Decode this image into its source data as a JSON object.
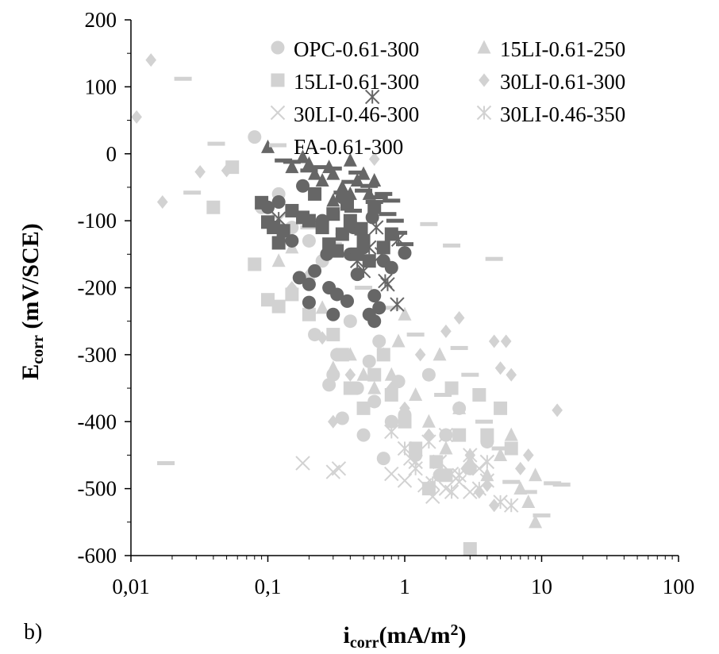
{
  "panel_label": "b)",
  "axis_titles": {
    "x": {
      "main": "i",
      "sub": "corr",
      "rest": "(mA/m",
      "sup": "2",
      "close": ")"
    },
    "y": {
      "main": "E",
      "sub": "corr",
      "rest": " (mV/SCE)"
    }
  },
  "colors": {
    "light": "#d2d2d2",
    "dark": "#666666",
    "axis": "#000000"
  },
  "chart_data": {
    "type": "scatter",
    "xlabel": "icorr(mA/m2)",
    "ylabel": "Ecorr (mV/SCE)",
    "x_scale": "log",
    "xlim": [
      0.01,
      100
    ],
    "ylim": [
      -600,
      200
    ],
    "x_ticks": [
      0.01,
      0.1,
      1,
      10,
      100
    ],
    "x_tick_labels": [
      "0,01",
      "0,1",
      "1",
      "10",
      "100"
    ],
    "y_ticks": [
      200,
      100,
      0,
      -100,
      -200,
      -300,
      -400,
      -500,
      -600
    ],
    "y_tick_labels": [
      "200",
      "100",
      "0",
      "-100",
      "-200",
      "-300",
      "-400",
      "-500",
      "-600"
    ],
    "grid": false,
    "legend_position": "top-right",
    "series": [
      {
        "name": "OPC-0.61-300",
        "marker": "circle",
        "color": "#d2d2d2",
        "points": [
          [
            0.08,
            25
          ],
          [
            0.09,
            -80
          ],
          [
            0.12,
            -60
          ],
          [
            0.15,
            -110
          ],
          [
            0.2,
            -130
          ],
          [
            0.22,
            -270
          ],
          [
            0.25,
            -160
          ],
          [
            0.3,
            -330
          ],
          [
            0.32,
            -300
          ],
          [
            0.35,
            -395
          ],
          [
            0.4,
            -250
          ],
          [
            0.45,
            -350
          ],
          [
            0.5,
            -420
          ],
          [
            0.6,
            -370
          ],
          [
            0.7,
            -455
          ],
          [
            0.8,
            -400
          ],
          [
            1.0,
            -390
          ],
          [
            1.2,
            -450
          ],
          [
            1.5,
            -330
          ],
          [
            2.0,
            -420
          ],
          [
            2.5,
            -380
          ],
          [
            3.0,
            -470
          ],
          [
            4.0,
            -430
          ],
          [
            0.28,
            -345
          ],
          [
            0.55,
            -310
          ],
          [
            0.9,
            -340
          ],
          [
            1.8,
            -480
          ],
          [
            0.38,
            -220
          ],
          [
            0.65,
            -280
          ]
        ]
      },
      {
        "name": "OPC-0.61-300 (dark)",
        "marker": "circle",
        "color": "#666666",
        "points": [
          [
            0.1,
            -80
          ],
          [
            0.12,
            -72
          ],
          [
            0.15,
            -130
          ],
          [
            0.17,
            -185
          ],
          [
            0.18,
            -48
          ],
          [
            0.2,
            -195
          ],
          [
            0.22,
            -175
          ],
          [
            0.2,
            -222
          ],
          [
            0.25,
            -100
          ],
          [
            0.28,
            -200
          ],
          [
            0.3,
            -240
          ],
          [
            0.32,
            -210
          ],
          [
            0.35,
            -120
          ],
          [
            0.38,
            -220
          ],
          [
            0.4,
            -150
          ],
          [
            0.45,
            -180
          ],
          [
            0.5,
            -140
          ],
          [
            0.55,
            -240
          ],
          [
            0.6,
            -250
          ],
          [
            0.6,
            -212
          ],
          [
            0.65,
            -230
          ],
          [
            0.7,
            -160
          ],
          [
            0.8,
            -170
          ],
          [
            1.0,
            -148
          ],
          [
            0.27,
            -150
          ],
          [
            0.42,
            -110
          ],
          [
            0.58,
            -95
          ],
          [
            0.35,
            -65
          ]
        ]
      },
      {
        "name": "15LI-0.61-250",
        "marker": "triangle",
        "color": "#d2d2d2",
        "points": [
          [
            0.12,
            -160
          ],
          [
            0.15,
            -140
          ],
          [
            0.2,
            -180
          ],
          [
            0.25,
            -230
          ],
          [
            0.3,
            -320
          ],
          [
            0.4,
            -300
          ],
          [
            0.5,
            -330
          ],
          [
            0.6,
            -350
          ],
          [
            0.7,
            -300
          ],
          [
            0.8,
            -330
          ],
          [
            1.0,
            -240
          ],
          [
            1.2,
            -360
          ],
          [
            1.5,
            -400
          ],
          [
            2.0,
            -440
          ],
          [
            2.5,
            -380
          ],
          [
            3.0,
            -460
          ],
          [
            4.0,
            -480
          ],
          [
            5.0,
            -450
          ],
          [
            6.0,
            -420
          ],
          [
            7.0,
            -500
          ],
          [
            8.0,
            -520
          ],
          [
            9.0,
            -550
          ],
          [
            9.0,
            -480
          ],
          [
            1.8,
            -300
          ],
          [
            0.9,
            -280
          ]
        ]
      },
      {
        "name": "15LI-0.61-250 (dark)",
        "marker": "triangle",
        "color": "#666666",
        "points": [
          [
            0.1,
            10
          ],
          [
            0.15,
            -20
          ],
          [
            0.18,
            -5
          ],
          [
            0.2,
            -15
          ],
          [
            0.22,
            -30
          ],
          [
            0.25,
            -40
          ],
          [
            0.28,
            -20
          ],
          [
            0.3,
            -30
          ],
          [
            0.35,
            -50
          ],
          [
            0.4,
            -10
          ],
          [
            0.45,
            -40
          ],
          [
            0.5,
            -30
          ],
          [
            0.55,
            -60
          ],
          [
            0.6,
            -40
          ],
          [
            0.3,
            -70
          ],
          [
            0.4,
            -60
          ]
        ]
      },
      {
        "name": "15LI-0.61-300",
        "marker": "square",
        "color": "#d2d2d2",
        "points": [
          [
            0.04,
            -80
          ],
          [
            0.055,
            -20
          ],
          [
            0.08,
            -165
          ],
          [
            0.1,
            -218
          ],
          [
            0.12,
            -228
          ],
          [
            0.15,
            -210
          ],
          [
            0.2,
            -240
          ],
          [
            0.3,
            -270
          ],
          [
            0.35,
            -300
          ],
          [
            0.4,
            -350
          ],
          [
            0.5,
            -380
          ],
          [
            0.6,
            -330
          ],
          [
            0.8,
            -360
          ],
          [
            1.0,
            -400
          ],
          [
            1.2,
            -440
          ],
          [
            1.5,
            -500
          ],
          [
            2.0,
            -480
          ],
          [
            2.5,
            -420
          ],
          [
            3.0,
            -590
          ],
          [
            3.5,
            -360
          ],
          [
            4.0,
            -420
          ],
          [
            5.0,
            -380
          ],
          [
            6.0,
            -440
          ],
          [
            2.2,
            -350
          ],
          [
            1.7,
            -460
          ],
          [
            0.7,
            -300
          ]
        ]
      },
      {
        "name": "15LI-0.61-300 (dark)",
        "marker": "square",
        "color": "#666666",
        "points": [
          [
            0.09,
            -73
          ],
          [
            0.1,
            -102
          ],
          [
            0.11,
            -110
          ],
          [
            0.12,
            -133
          ],
          [
            0.13,
            -115
          ],
          [
            0.15,
            -85
          ],
          [
            0.18,
            -95
          ],
          [
            0.2,
            -100
          ],
          [
            0.22,
            -60
          ],
          [
            0.25,
            -110
          ],
          [
            0.28,
            -135
          ],
          [
            0.3,
            -90
          ],
          [
            0.32,
            -145
          ],
          [
            0.35,
            -120
          ],
          [
            0.4,
            -100
          ],
          [
            0.45,
            -150
          ],
          [
            0.5,
            -130
          ],
          [
            0.55,
            -160
          ],
          [
            0.6,
            -80
          ],
          [
            0.7,
            -140
          ],
          [
            0.8,
            -120
          ],
          [
            0.38,
            -75
          ],
          [
            0.48,
            -112
          ]
        ]
      },
      {
        "name": "30LI-0.61-300",
        "marker": "diamond",
        "color": "#d2d2d2",
        "points": [
          [
            0.011,
            55
          ],
          [
            0.014,
            140
          ],
          [
            0.017,
            -72
          ],
          [
            0.032,
            -27
          ],
          [
            0.05,
            -25
          ],
          [
            0.15,
            -200
          ],
          [
            0.2,
            -180
          ],
          [
            0.25,
            -275
          ],
          [
            0.3,
            -400
          ],
          [
            0.4,
            -330
          ],
          [
            0.6,
            -8
          ],
          [
            0.8,
            -350
          ],
          [
            1.0,
            -380
          ],
          [
            1.5,
            -420
          ],
          [
            2.0,
            -265
          ],
          [
            2.5,
            -245
          ],
          [
            3.0,
            -450
          ],
          [
            4.0,
            -495
          ],
          [
            4.5,
            -280
          ],
          [
            5.0,
            -320
          ],
          [
            5.5,
            -280
          ],
          [
            6.0,
            -330
          ],
          [
            7.0,
            -470
          ],
          [
            8.0,
            -450
          ],
          [
            13.0,
            -383
          ],
          [
            4.5,
            -525
          ],
          [
            3.5,
            -505
          ],
          [
            2.8,
            -470
          ],
          [
            1.3,
            -300
          ]
        ]
      },
      {
        "name": "30LI-0.46-300",
        "marker": "x",
        "color": "#d2d2d2",
        "points": [
          [
            0.12,
            -100
          ],
          [
            0.18,
            -462
          ],
          [
            0.3,
            -475
          ],
          [
            0.33,
            -470
          ],
          [
            0.8,
            -478
          ],
          [
            1.0,
            -488
          ],
          [
            1.2,
            -460
          ],
          [
            1.4,
            -495
          ],
          [
            1.6,
            -512
          ],
          [
            2.0,
            -500
          ],
          [
            2.5,
            -490
          ],
          [
            3.0,
            -505
          ],
          [
            3.5,
            -470
          ],
          [
            1.1,
            -455
          ],
          [
            2.2,
            -478
          ],
          [
            4.0,
            -488
          ]
        ]
      },
      {
        "name": "30LI-0.46-350",
        "marker": "asterisk",
        "color": "#d2d2d2",
        "points": [
          [
            0.8,
            -415
          ],
          [
            1.0,
            -440
          ],
          [
            1.2,
            -470
          ],
          [
            1.5,
            -430
          ],
          [
            1.8,
            -460
          ],
          [
            2.0,
            -420
          ],
          [
            2.5,
            -480
          ],
          [
            3.0,
            -450
          ],
          [
            3.5,
            -500
          ],
          [
            4.0,
            -460
          ],
          [
            5.0,
            -520
          ],
          [
            6.0,
            -525
          ],
          [
            2.2,
            -505
          ],
          [
            1.6,
            -492
          ]
        ]
      },
      {
        "name": "30LI-0.46-350 (dark)",
        "marker": "asterisk",
        "color": "#666666",
        "points": [
          [
            0.12,
            -97
          ],
          [
            0.58,
            85
          ],
          [
            0.72,
            -190
          ],
          [
            0.75,
            -195
          ],
          [
            0.88,
            -225
          ],
          [
            0.9,
            -128
          ],
          [
            0.45,
            -160
          ],
          [
            0.5,
            -175
          ],
          [
            0.55,
            -140
          ],
          [
            0.62,
            -110
          ],
          [
            0.68,
            -150
          ]
        ]
      },
      {
        "name": "FA-0.61-300",
        "marker": "dash",
        "color": "#d2d2d2",
        "points": [
          [
            0.018,
            -462
          ],
          [
            0.024,
            112
          ],
          [
            0.028,
            -58
          ],
          [
            0.042,
            15
          ],
          [
            0.2,
            -110
          ],
          [
            0.3,
            -135
          ],
          [
            0.5,
            -200
          ],
          [
            0.8,
            -230
          ],
          [
            1.2,
            -270
          ],
          [
            1.5,
            -105
          ],
          [
            2.2,
            -137
          ],
          [
            2.5,
            -290
          ],
          [
            3.0,
            -330
          ],
          [
            4.5,
            -157
          ],
          [
            6.0,
            -490
          ],
          [
            7.0,
            -610
          ],
          [
            8.0,
            -505
          ],
          [
            10.0,
            -540
          ],
          [
            12.0,
            -492
          ],
          [
            14.0,
            -494
          ],
          [
            5.0,
            -440
          ],
          [
            3.8,
            -400
          ],
          [
            1.9,
            -360
          ]
        ]
      },
      {
        "name": "FA-0.61-300 (dark)",
        "marker": "dash",
        "color": "#666666",
        "points": [
          [
            0.13,
            -10
          ],
          [
            0.15,
            -12
          ],
          [
            0.2,
            -25
          ],
          [
            0.25,
            -20
          ],
          [
            0.3,
            -22
          ],
          [
            0.35,
            -58
          ],
          [
            0.4,
            -42
          ],
          [
            0.45,
            -28
          ],
          [
            0.5,
            -55
          ],
          [
            0.55,
            -48
          ],
          [
            0.6,
            -72
          ],
          [
            0.65,
            -65
          ],
          [
            0.7,
            -60
          ],
          [
            0.8,
            -70
          ],
          [
            0.85,
            -100
          ],
          [
            0.9,
            -118
          ],
          [
            1.0,
            -135
          ],
          [
            0.75,
            -90
          ],
          [
            0.42,
            -85
          ]
        ]
      }
    ],
    "legend": [
      {
        "label": "OPC-0.61-300",
        "marker": "circle"
      },
      {
        "label": "15LI-0.61-250",
        "marker": "triangle"
      },
      {
        "label": "15LI-0.61-300",
        "marker": "square"
      },
      {
        "label": "30LI-0.61-300",
        "marker": "diamond"
      },
      {
        "label": "30LI-0.46-300",
        "marker": "x"
      },
      {
        "label": "30LI-0.46-350",
        "marker": "asterisk"
      },
      {
        "label": "FA-0.61-300",
        "marker": "dash"
      }
    ]
  }
}
